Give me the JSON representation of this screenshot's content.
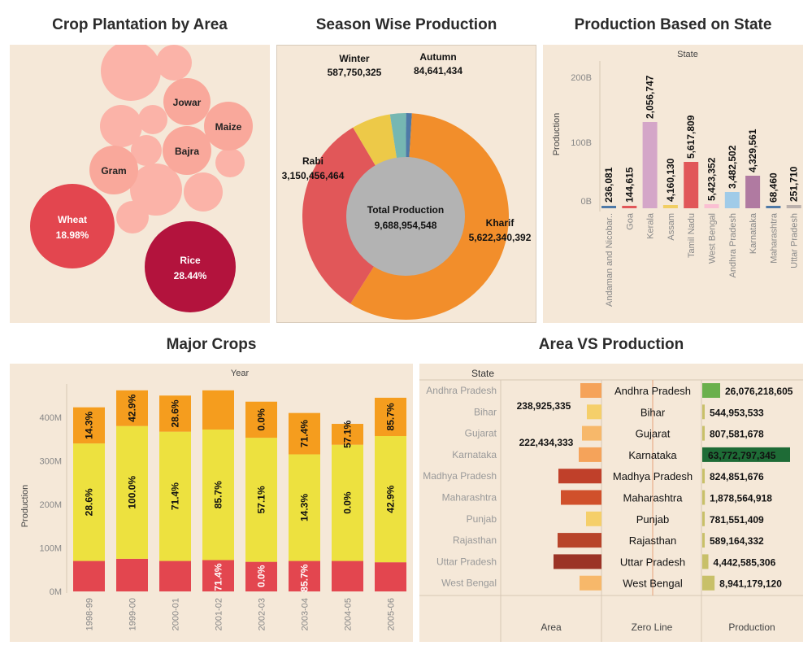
{
  "titles": {
    "crop": "Crop Plantation by Area",
    "season": "Season Wise Production",
    "state": "Production Based on State",
    "major": "Major Crops",
    "areavs": "Area VS Production"
  },
  "chart_data": [
    {
      "type": "bubble",
      "title": "Crop Plantation by Area",
      "bubbles": [
        {
          "label": "Rice",
          "value": "28.44%",
          "color": "#b3133d"
        },
        {
          "label": "Wheat",
          "value": "18.98%",
          "color": "#e3464f"
        },
        {
          "label": "Gram",
          "value": "",
          "color": "#f9a89b"
        },
        {
          "label": "Bajra",
          "value": "",
          "color": "#f9a89b"
        },
        {
          "label": "Jowar",
          "value": "",
          "color": "#f9a89b"
        },
        {
          "label": "Maize",
          "value": "",
          "color": "#f9a89b"
        }
      ]
    },
    {
      "type": "pie",
      "title": "Season Wise Production",
      "center_label": "Total Production",
      "center_value": "9,688,954,548",
      "slices": [
        {
          "label": "Kharif",
          "value": 5622340392,
          "display": "5,622,340,392",
          "color": "#f28e2b"
        },
        {
          "label": "Rabi",
          "value": 3150456464,
          "display": "3,150,456,464",
          "color": "#e15759"
        },
        {
          "label": "Winter",
          "value": 587750325,
          "display": "587,750,325",
          "color": "#edc948"
        },
        {
          "label": "Autumn",
          "value": 84641434,
          "display": "84,641,434",
          "color": "#4e79a7"
        }
      ]
    },
    {
      "type": "bar",
      "title": "Production Based on State",
      "xlabel": "State",
      "ylabel": "Production",
      "yticks": [
        "200B",
        "100B",
        "0B"
      ],
      "categories": [
        "Andaman and Nicobar..",
        "Goa",
        "Kerala",
        "Assam",
        "Tamil Nadu",
        "West Bengal",
        "Andhra Pradesh",
        "Karnataka",
        "Maharashtra",
        "Uttar Pradesh"
      ],
      "values": [
        236081,
        144615,
        2056747,
        4160130,
        5617809,
        5423352,
        3482502,
        4329561,
        68460,
        251710
      ],
      "labels": [
        "236,081",
        "144,615",
        "2,056,747",
        "4,160,130",
        "5,617,809",
        "5,423,352",
        "3,482,502",
        "4,329,561",
        "68,460",
        "251,710"
      ],
      "colors": [
        "#4e79a7",
        "#e15759",
        "#d4a6c8",
        "#f1ce63",
        "#e15759",
        "#fabfd2",
        "#a0cbe8",
        "#b07aa1",
        "#4e79a7",
        "#bab0ac"
      ]
    },
    {
      "type": "stacked-bar",
      "title": "Major Crops",
      "xlabel": "Year",
      "ylabel": "Production",
      "yticks": [
        "400M",
        "300M",
        "200M",
        "100M",
        "0M"
      ],
      "ylim": [
        0,
        440
      ],
      "categories": [
        "1998-99",
        "1999-00",
        "2000-01",
        "2001-02",
        "2002-03",
        "2003-04",
        "2004-05",
        "2005-06"
      ],
      "series": [
        {
          "color": "#e3464f",
          "values": [
            70,
            75,
            70,
            72,
            68,
            70,
            70,
            67
          ],
          "labels": [
            "",
            "",
            "",
            "71.4%",
            "0.0%",
            "85.7%",
            "",
            ""
          ]
        },
        {
          "color": "#ede13f",
          "values": [
            270,
            305,
            297,
            300,
            285,
            245,
            267,
            290
          ],
          "labels": [
            "28.6%",
            "100.0%",
            "71.4%",
            "85.7%",
            "57.1%",
            "14.3%",
            "0.0%",
            "42.9%"
          ]
        },
        {
          "color": "#f59d1e",
          "values": [
            83,
            82,
            83,
            90,
            83,
            95,
            48,
            88
          ],
          "labels": [
            "14.3%",
            "42.9%",
            "28.6%",
            "",
            "0.0%",
            "71.4%",
            "57.1%",
            "85.7%"
          ]
        }
      ]
    },
    {
      "type": "butterfly",
      "title": "Area VS Production",
      "header": "State",
      "footer": [
        "Area",
        "Zero Line",
        "Production"
      ],
      "area_labels": [
        "238,925,335",
        "222,434,333"
      ],
      "rows": [
        {
          "state": "Andhra Pradesh",
          "area": 0.26,
          "area_color": "#f5a35a",
          "prod": 26076218605,
          "prod_label": "26,076,218,605",
          "prod_color": "#6ab04c"
        },
        {
          "state": "Bihar",
          "area": 0.18,
          "area_color": "#f5cf6a",
          "prod": 544953533,
          "prod_label": "544,953,533",
          "prod_color": "#c8c069"
        },
        {
          "state": "Gujarat",
          "area": 0.24,
          "area_color": "#f7b86a",
          "prod": 807581678,
          "prod_label": "807,581,678",
          "prod_color": "#c8c069"
        },
        {
          "state": "Karnataka",
          "area": 0.28,
          "area_color": "#f5a35a",
          "prod": 63772797345,
          "prod_label": "63,772,797,345",
          "prod_color": "#1e6b36"
        },
        {
          "state": "Madhya Pradesh",
          "area": 0.53,
          "area_color": "#c0402a",
          "prod": 824851676,
          "prod_label": "824,851,676",
          "prod_color": "#c8c069"
        },
        {
          "state": "Maharashtra",
          "area": 0.5,
          "area_color": "#d0502b",
          "prod": 1878564918,
          "prod_label": "1,878,564,918",
          "prod_color": "#c8c069"
        },
        {
          "state": "Punjab",
          "area": 0.19,
          "area_color": "#f5cf6a",
          "prod": 781551409,
          "prod_label": "781,551,409",
          "prod_color": "#c8c069"
        },
        {
          "state": "Rajasthan",
          "area": 0.54,
          "area_color": "#b8442a",
          "prod": 589164332,
          "prod_label": "589,164,332",
          "prod_color": "#c8c069"
        },
        {
          "state": "Uttar Pradesh",
          "area": 0.59,
          "area_color": "#9b3326",
          "prod": 4442585306,
          "prod_label": "4,442,585,306",
          "prod_color": "#c8c069"
        },
        {
          "state": "West Bengal",
          "area": 0.27,
          "area_color": "#f7b86a",
          "prod": 8941179120,
          "prod_label": "8,941,179,120",
          "prod_color": "#c8c069"
        }
      ]
    }
  ]
}
